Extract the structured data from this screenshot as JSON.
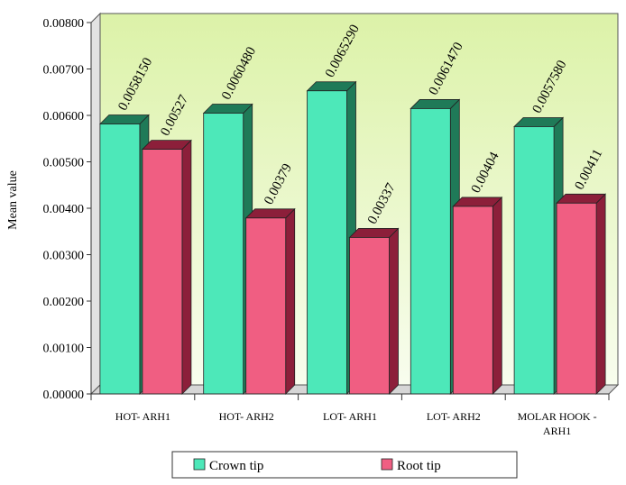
{
  "chart_data": {
    "type": "bar",
    "categories": [
      "HOT- ARH1",
      "HOT- ARH2",
      "LOT- ARH1",
      "LOT- ARH2",
      "MOLAR HOOK - ARH1"
    ],
    "category_lines": [
      [
        "HOT- ARH1"
      ],
      [
        "HOT- ARH2"
      ],
      [
        "LOT- ARH1"
      ],
      [
        "LOT- ARH2"
      ],
      [
        "MOLAR HOOK -",
        "ARH1"
      ]
    ],
    "series": [
      {
        "name": "Crown tip",
        "values": [
          0.005815,
          0.006048,
          0.006529,
          0.006147,
          0.005758
        ],
        "labels": [
          "0.0058150",
          "0.0060480",
          "0.0065290",
          "0.0061470",
          "0.0057580"
        ],
        "color": "#4de8b9",
        "side_color": "#1f7a58"
      },
      {
        "name": "Root tip",
        "values": [
          0.00527,
          0.00379,
          0.00337,
          0.00404,
          0.00411
        ],
        "labels": [
          "0.00527",
          "0.00379",
          "0.00337",
          "0.00404",
          "0.00411"
        ],
        "color": "#f05e82",
        "side_color": "#8c1f3a"
      }
    ],
    "ylabel": "Mean value",
    "xlabel": "",
    "title": "",
    "ylim": [
      0,
      0.008
    ],
    "yticks": [
      "0.00000",
      "0.00100",
      "0.00200",
      "0.00300",
      "0.00400",
      "0.00500",
      "0.00600",
      "0.00700",
      "0.00800"
    ],
    "grid": false,
    "legend_position": "bottom",
    "plot_background": "#e6f7c2"
  }
}
